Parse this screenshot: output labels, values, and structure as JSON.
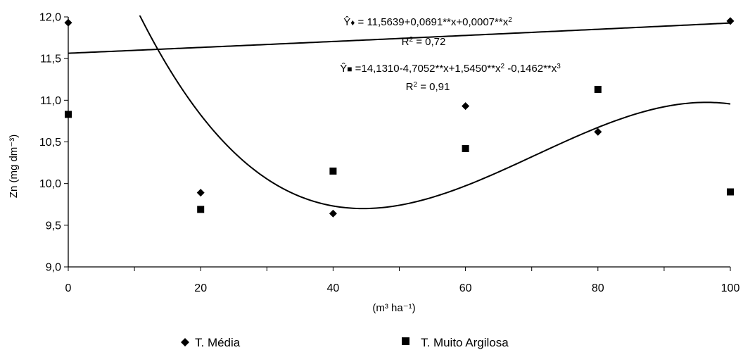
{
  "chart_data": {
    "type": "scatter",
    "ylabel": "Zn (mg dm⁻³)",
    "xlabel": "(m³ ha⁻¹)",
    "xlim": [
      0,
      100
    ],
    "ylim": [
      9.0,
      12.0
    ],
    "x_ticks": [
      0,
      20,
      40,
      60,
      80,
      100
    ],
    "y_ticks": [
      9.0,
      9.5,
      10.0,
      10.5,
      11.0,
      11.5,
      12.0
    ],
    "x_tick_labels": [
      "0",
      "20",
      "40",
      "60",
      "80",
      "100"
    ],
    "y_tick_labels": [
      "9,0",
      "9,5",
      "10,0",
      "10,5",
      "11,0",
      "11,5",
      "12,0"
    ],
    "grid": false,
    "legend_position": "bottom",
    "series": [
      {
        "name": "T. Média",
        "marker": "diamond",
        "color": "#000000",
        "x": [
          0,
          20,
          40,
          60,
          80,
          100
        ],
        "y": [
          11.93,
          9.89,
          9.64,
          10.93,
          10.62,
          11.95
        ],
        "fit_coefficients": [
          11.5639,
          0.0691,
          0.0007
        ]
      },
      {
        "name": "T. Muito Argilosa",
        "marker": "square",
        "color": "#000000",
        "x": [
          0,
          20,
          40,
          60,
          80,
          100
        ],
        "y": [
          10.83,
          9.69,
          10.15,
          10.42,
          11.13,
          9.9
        ],
        "fit_coefficients": [
          14.131,
          -4.7052,
          1.545,
          -0.1462
        ]
      }
    ],
    "annotations": [
      {
        "parts": [
          "Ŷ",
          "♦",
          " = 11,5639+0,0691**x+0,0007**x",
          "2"
        ]
      },
      {
        "parts": [
          "R",
          "2",
          " = 0,72"
        ]
      },
      {
        "parts": [
          "Ŷ",
          "■",
          " =14,1310-4,7052**x+1,5450**x",
          "2",
          " -0,1462**x",
          "3"
        ]
      },
      {
        "parts": [
          "R",
          "2",
          " = 0,91"
        ]
      }
    ]
  }
}
